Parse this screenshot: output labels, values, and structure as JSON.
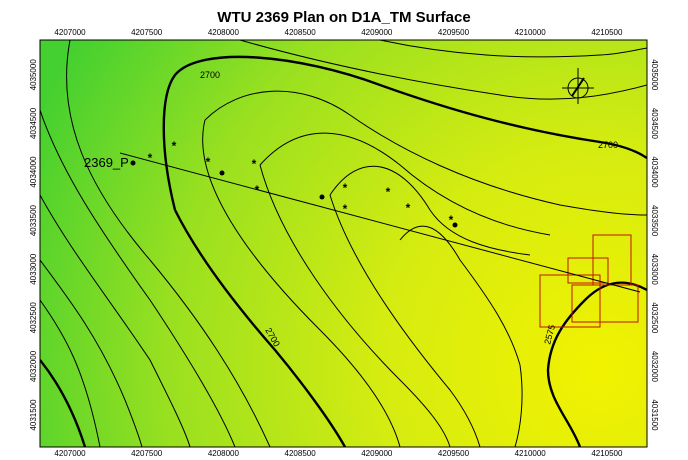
{
  "map": {
    "title": "WTU 2369 Plan on D1A_TM Surface",
    "xticks": [
      "4207000",
      "4207500",
      "4208000",
      "4208500",
      "4209000",
      "4209500",
      "4210000",
      "4210500"
    ],
    "yticks": [
      "4031500",
      "4032000",
      "4032500",
      "4033000",
      "4033500",
      "4034000",
      "4034500",
      "4035000"
    ],
    "well_label": "2369_P",
    "contour_labels": [
      "2700",
      "2700",
      "2700",
      "2575"
    ]
  }
}
